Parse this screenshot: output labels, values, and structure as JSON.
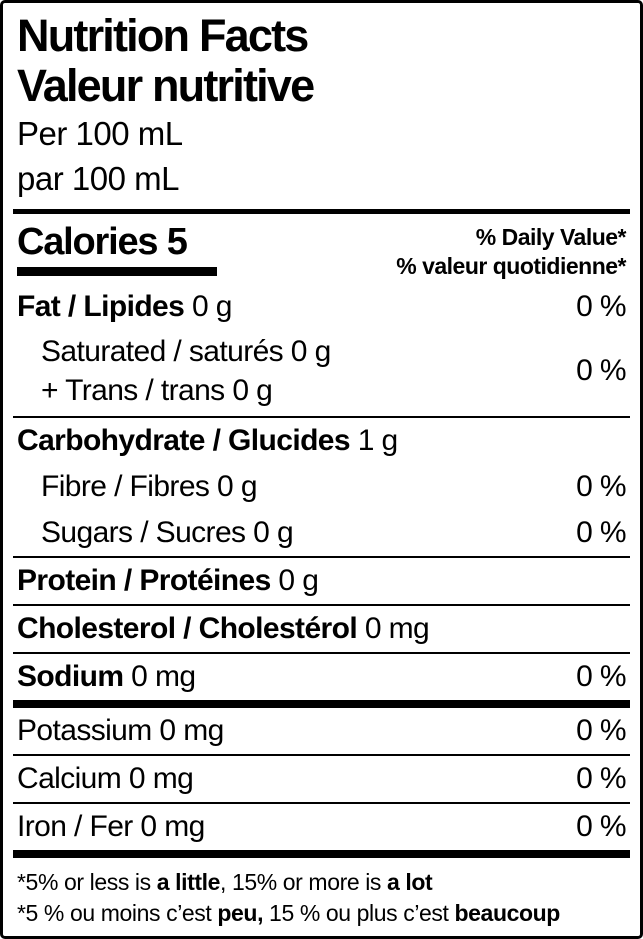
{
  "label": {
    "title_en": "Nutrition Facts",
    "title_fr": "Valeur nutritive",
    "serving_en": "Per 100 mL",
    "serving_fr": "par 100 mL",
    "calories_line": "Calories 5",
    "dv_header_en": "% Daily Value*",
    "dv_header_fr": "% valeur quotidienne*",
    "text_color": "#000000",
    "background_color": "#ffffff",
    "rows": {
      "fat": {
        "bold": "Fat / Lipides",
        "rest": " 0 g",
        "dv": "0 %"
      },
      "sat_trans": {
        "line1": "Saturated / saturés 0 g",
        "line2": "+ Trans / trans 0 g",
        "dv": "0 %"
      },
      "carb": {
        "bold": "Carbohydrate / Glucides",
        "rest": " 1 g",
        "dv": ""
      },
      "fibre": {
        "bold": "",
        "rest": "Fibre / Fibres 0 g",
        "dv": "0 %"
      },
      "sugars": {
        "bold": "",
        "rest": "Sugars / Sucres 0 g",
        "dv": "0 %"
      },
      "protein": {
        "bold": "Protein / Protéines",
        "rest": " 0 g",
        "dv": ""
      },
      "cholesterol": {
        "bold": "Cholesterol / Cholestérol",
        "rest": " 0 mg",
        "dv": ""
      },
      "sodium": {
        "bold": "Sodium",
        "rest": " 0 mg",
        "dv": "0 %"
      },
      "potassium": {
        "bold": "",
        "rest": "Potassium 0 mg",
        "dv": "0 %"
      },
      "calcium": {
        "bold": "",
        "rest": "Calcium 0 mg",
        "dv": "0 %"
      },
      "iron": {
        "bold": "",
        "rest": "Iron / Fer 0 mg",
        "dv": "0 %"
      }
    },
    "footnote_en": {
      "p1": "*5% or less is ",
      "b1": "a little",
      "p2": ", 15% or more is ",
      "b2": "a lot"
    },
    "footnote_fr": {
      "p1": "*5 % ou moins c’est ",
      "b1": "peu,",
      "p2": " 15 % ou plus c’est ",
      "b2": "beaucoup"
    }
  }
}
